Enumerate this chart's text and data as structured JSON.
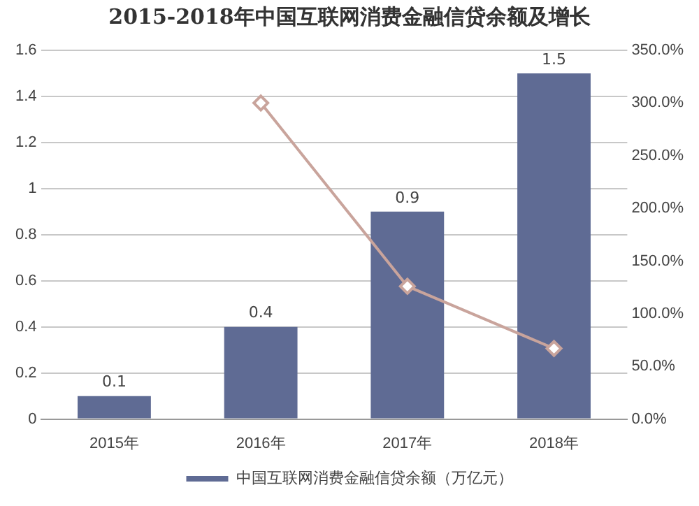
{
  "chart_data": {
    "type": "bar",
    "title": "2015-2018年中国互联网消费金融信贷余额及增长",
    "categories": [
      "2015年",
      "2016年",
      "2017年",
      "2018年"
    ],
    "series": [
      {
        "name": "中国互联网消费金融信贷余额（万亿元）",
        "color": "#5f6b94",
        "values": [
          0.1,
          0.4,
          0.9,
          1.5
        ],
        "value_labels": [
          "0.1",
          "0.4",
          "0.9",
          "1.5"
        ]
      },
      {
        "type": "line",
        "axis": "y2",
        "color": "#c9a49c",
        "values": [
          null,
          300,
          126,
          67
        ],
        "marker": "diamond"
      }
    ],
    "ylim": [
      0,
      1.6
    ],
    "yticks": [
      0,
      0.2,
      0.4,
      0.6,
      0.8,
      1,
      1.2,
      1.4,
      1.6
    ],
    "y2lim": [
      0,
      350
    ],
    "y2ticks": [
      {
        "value": 0,
        "label": "0.0%"
      },
      {
        "value": 50,
        "label": "50.0%"
      },
      {
        "value": 100,
        "label": "100.0%"
      },
      {
        "value": 150,
        "label": "150.0%"
      },
      {
        "value": 200,
        "label": "200.0%"
      },
      {
        "value": 250,
        "label": "250.0%"
      },
      {
        "value": 300,
        "label": "300.0%"
      },
      {
        "value": 350,
        "label": "350.0%"
      }
    ],
    "grid": "y",
    "legend": "bottom"
  }
}
